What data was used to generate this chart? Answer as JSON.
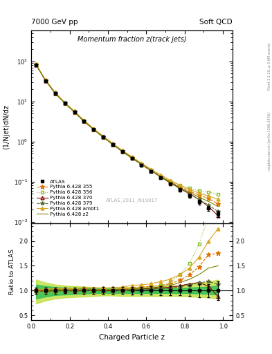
{
  "title": "Momentum fraction z(track jets)",
  "top_left_label": "7000 GeV pp",
  "top_right_label": "Soft QCD",
  "ylabel_main": "(1/Njet)dN/dz",
  "ylabel_ratio": "Ratio to ATLAS",
  "xlabel": "Charged Particle z",
  "watermark": "ATLAS_2011_I919017",
  "right_label": "Rivet 3.1.10, ≥ 2.6M events",
  "right_label2": "mcplots.cern.ch [arXiv:1306.3436]",
  "ylim_main": [
    0.009,
    600
  ],
  "ylim_ratio": [
    0.4,
    2.35
  ],
  "xlim": [
    0.0,
    1.05
  ],
  "z_points": [
    0.025,
    0.075,
    0.125,
    0.175,
    0.225,
    0.275,
    0.325,
    0.375,
    0.425,
    0.475,
    0.525,
    0.575,
    0.625,
    0.675,
    0.725,
    0.775,
    0.825,
    0.875,
    0.925,
    0.975
  ],
  "atlas_y": [
    82,
    33,
    16,
    9.0,
    5.5,
    3.2,
    2.0,
    1.3,
    0.85,
    0.56,
    0.38,
    0.26,
    0.18,
    0.125,
    0.088,
    0.062,
    0.044,
    0.031,
    0.022,
    0.016
  ],
  "atlas_err": [
    5,
    2,
    1,
    0.5,
    0.3,
    0.2,
    0.13,
    0.09,
    0.06,
    0.04,
    0.03,
    0.02,
    0.015,
    0.011,
    0.008,
    0.006,
    0.005,
    0.004,
    0.003,
    0.003
  ],
  "p355_y": [
    83,
    33.5,
    16.3,
    9.2,
    5.6,
    3.3,
    2.05,
    1.33,
    0.87,
    0.58,
    0.4,
    0.28,
    0.195,
    0.138,
    0.1,
    0.075,
    0.058,
    0.046,
    0.038,
    0.028
  ],
  "p356_y": [
    80,
    32,
    15.5,
    8.8,
    5.3,
    3.1,
    1.95,
    1.25,
    0.82,
    0.55,
    0.39,
    0.27,
    0.192,
    0.138,
    0.102,
    0.082,
    0.068,
    0.06,
    0.055,
    0.048
  ],
  "p370_y": [
    82,
    33,
    16.1,
    9.1,
    5.5,
    3.25,
    2.02,
    1.31,
    0.86,
    0.57,
    0.39,
    0.27,
    0.188,
    0.132,
    0.094,
    0.068,
    0.05,
    0.036,
    0.024,
    0.014
  ],
  "p379_y": [
    81,
    32.5,
    15.8,
    9.0,
    5.4,
    3.2,
    2.0,
    1.29,
    0.84,
    0.56,
    0.38,
    0.265,
    0.185,
    0.13,
    0.092,
    0.067,
    0.049,
    0.036,
    0.026,
    0.018
  ],
  "pambt1_y": [
    84,
    34,
    16.6,
    9.4,
    5.7,
    3.4,
    2.1,
    1.37,
    0.9,
    0.6,
    0.42,
    0.29,
    0.205,
    0.148,
    0.108,
    0.082,
    0.064,
    0.052,
    0.044,
    0.036
  ],
  "pz2_y": [
    82,
    33,
    16.1,
    9.1,
    5.5,
    3.25,
    2.02,
    1.31,
    0.86,
    0.57,
    0.39,
    0.272,
    0.19,
    0.135,
    0.097,
    0.072,
    0.054,
    0.041,
    0.032,
    0.024
  ],
  "band_inner_lo": [
    0.84,
    0.88,
    0.91,
    0.92,
    0.93,
    0.94,
    0.95,
    0.95,
    0.95,
    0.95,
    0.95,
    0.95,
    0.95,
    0.95,
    0.95,
    0.95,
    0.95,
    0.94,
    0.93,
    0.92
  ],
  "band_inner_hi": [
    1.12,
    1.09,
    1.07,
    1.06,
    1.05,
    1.05,
    1.04,
    1.04,
    1.04,
    1.04,
    1.04,
    1.04,
    1.04,
    1.04,
    1.05,
    1.05,
    1.06,
    1.07,
    1.08,
    1.1
  ],
  "band_outer_lo": [
    0.74,
    0.8,
    0.84,
    0.86,
    0.87,
    0.88,
    0.89,
    0.9,
    0.9,
    0.89,
    0.89,
    0.89,
    0.89,
    0.89,
    0.89,
    0.89,
    0.88,
    0.87,
    0.86,
    0.84
  ],
  "band_outer_hi": [
    1.22,
    1.16,
    1.12,
    1.1,
    1.09,
    1.08,
    1.07,
    1.06,
    1.06,
    1.07,
    1.07,
    1.07,
    1.07,
    1.08,
    1.09,
    1.1,
    1.12,
    1.15,
    1.18,
    1.22
  ],
  "color_atlas": "#000000",
  "color_p355": "#e07000",
  "color_p356": "#88bb22",
  "color_p370": "#8b0000",
  "color_p379": "#556b2f",
  "color_pambt1": "#daa520",
  "color_pz2": "#808000",
  "color_band_inner": "#22bb55",
  "color_band_outer": "#bbdd33"
}
